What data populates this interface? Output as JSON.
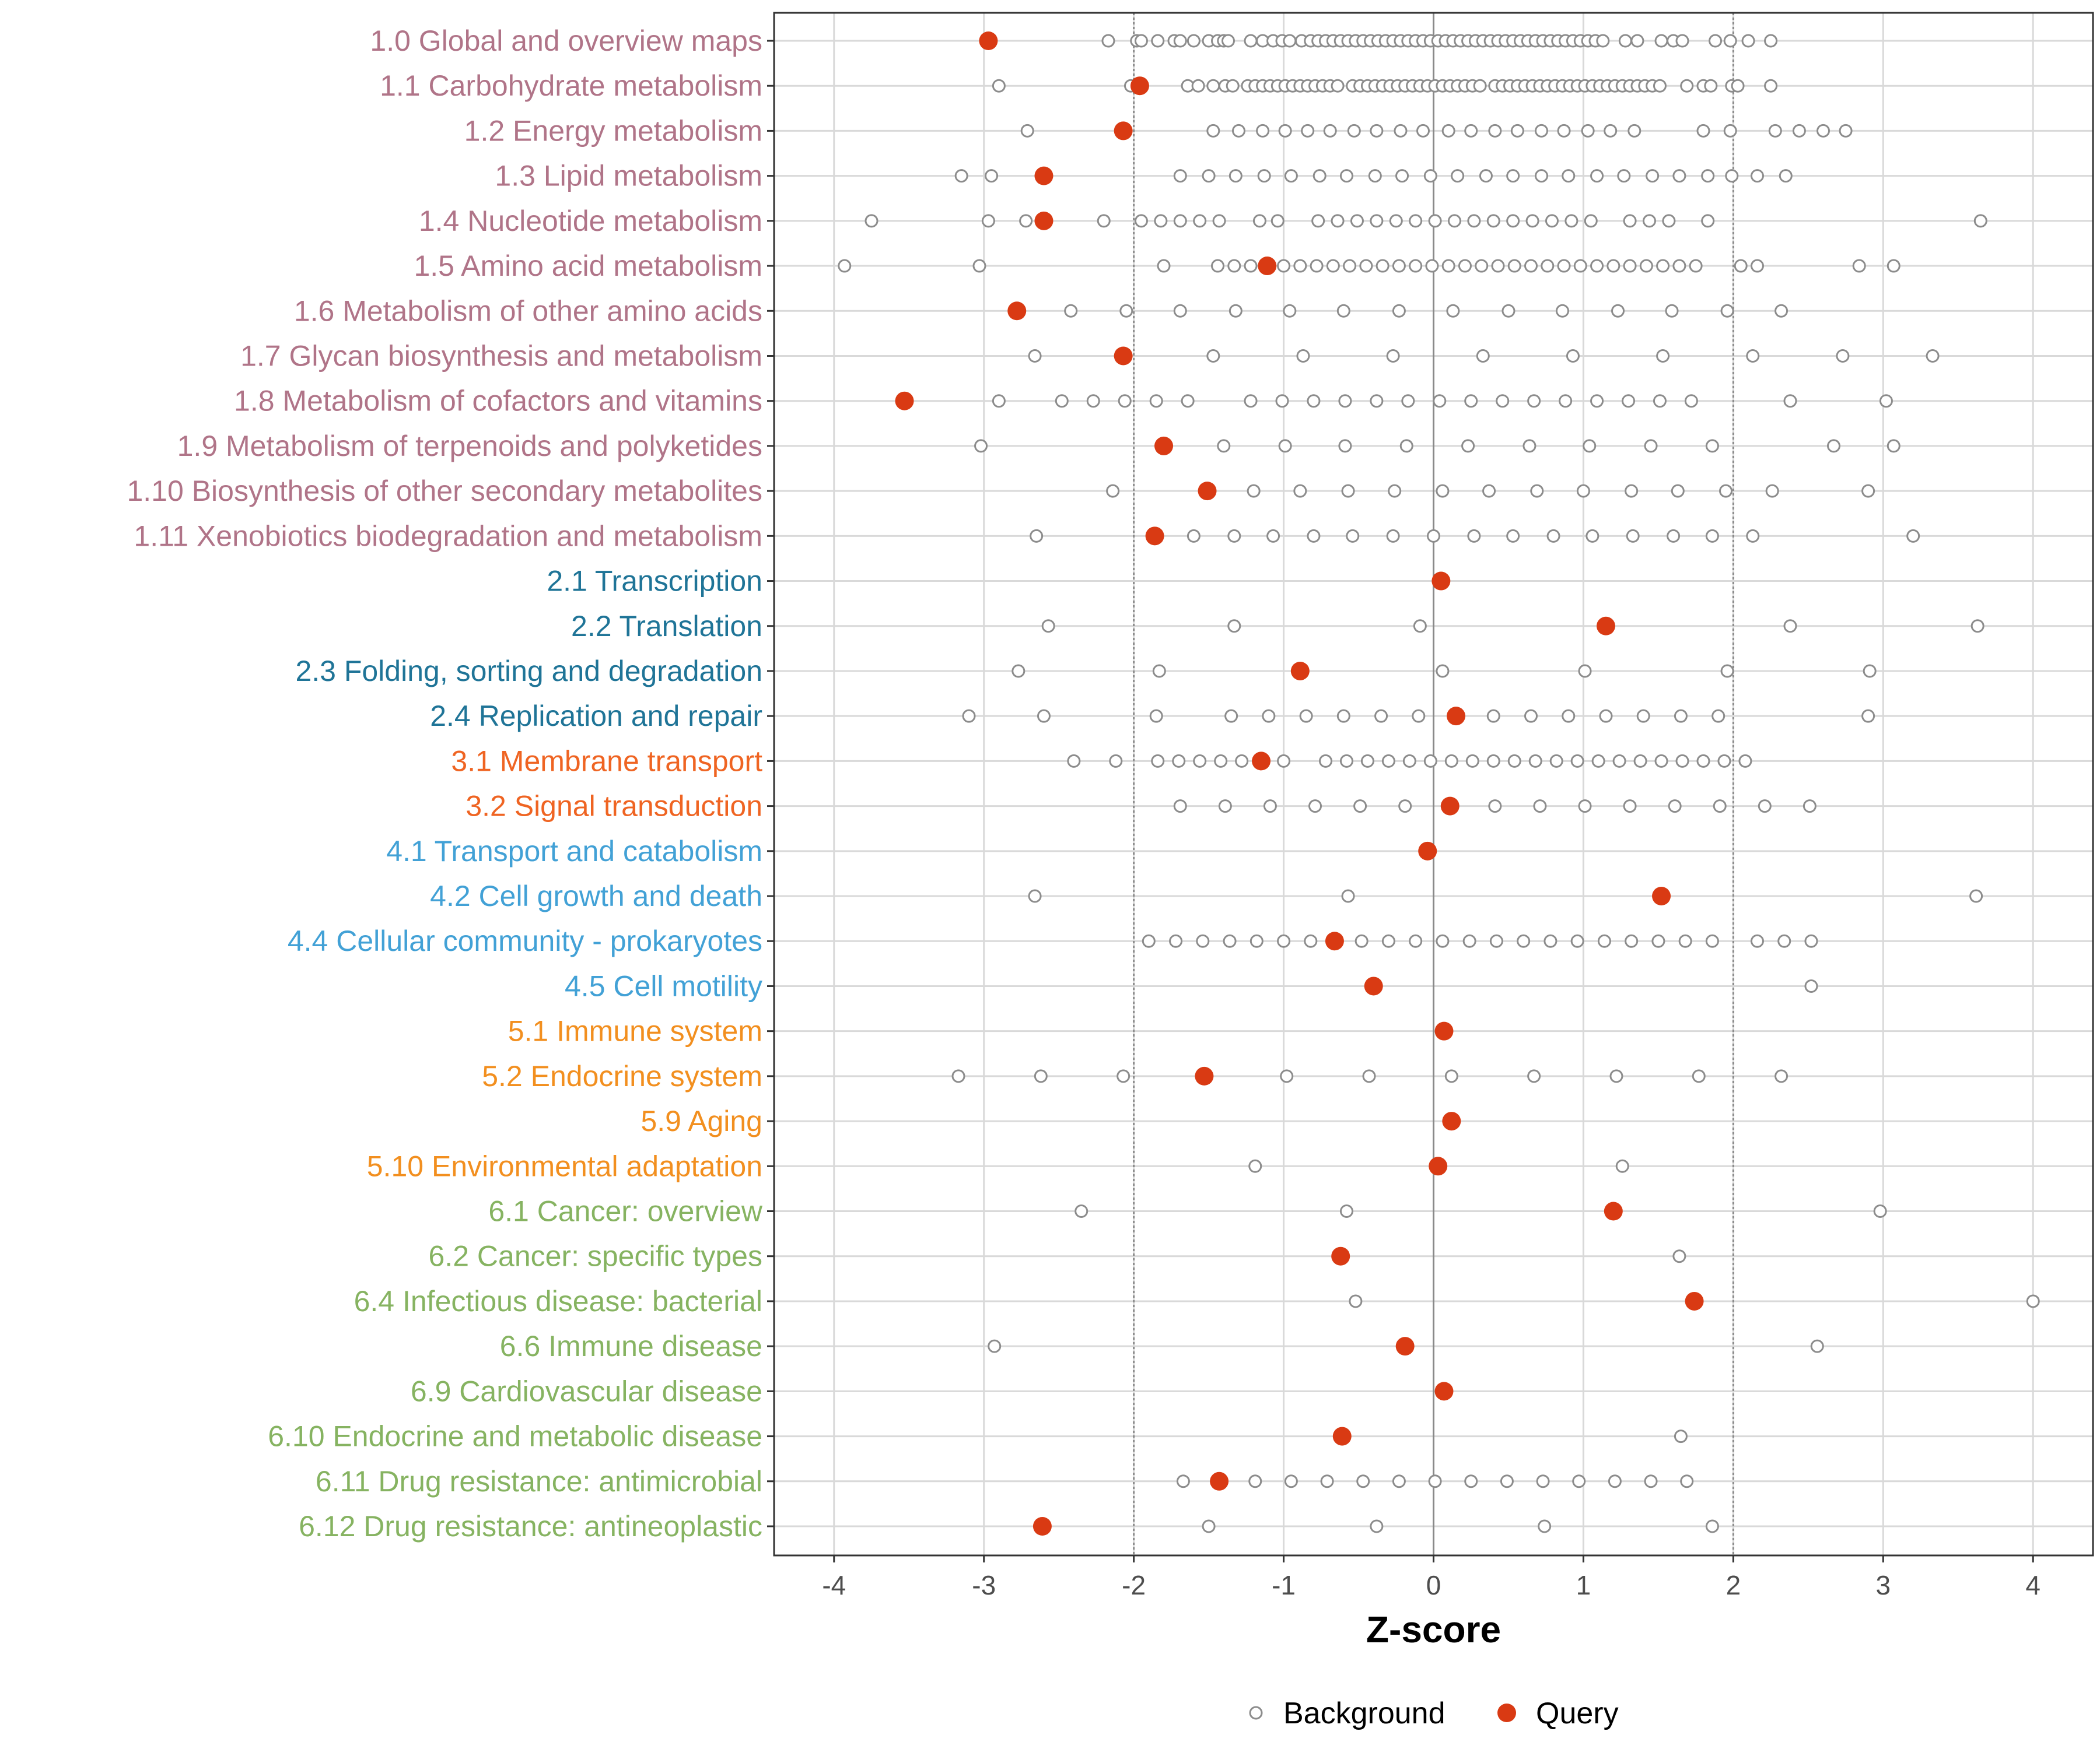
{
  "chart_data": {
    "type": "scatter",
    "xlabel": "Z-score",
    "xlim": [
      -4.4,
      4.4
    ],
    "xticks": [
      -4,
      -3,
      -2,
      -1,
      0,
      1,
      2,
      3,
      4
    ],
    "xtick_labels": [
      "-4",
      "-3",
      "-2",
      "-1",
      "0",
      "1",
      "2",
      "3",
      "4"
    ],
    "reference_lines": [
      -2,
      0,
      2
    ],
    "legend": {
      "position": "bottom",
      "entries": [
        {
          "name": "Background",
          "style": "open-circle",
          "color": "#8c8c8c"
        },
        {
          "name": "Query",
          "style": "filled-circle",
          "color": "#d93a13"
        }
      ]
    },
    "group_colors": {
      "1": "#b07488",
      "2": "#1f7497",
      "3": "#ef6422",
      "4": "#42a1d6",
      "5": "#f28f1f",
      "6": "#86b361"
    },
    "categories": [
      {
        "label": "1.0 Global and overview maps",
        "group": "1",
        "query": -2.97,
        "background": [
          -2.17,
          -1.98,
          -1.95,
          -1.84,
          -1.73,
          -1.69,
          -1.6,
          -1.5,
          -1.44,
          -1.4,
          -1.37,
          -1.22,
          -1.14,
          -1.07,
          -1.01,
          -0.96,
          -0.88,
          -0.82,
          -0.77,
          -0.72,
          -0.67,
          -0.62,
          -0.57,
          -0.52,
          -0.47,
          -0.42,
          -0.37,
          -0.32,
          -0.27,
          -0.22,
          -0.17,
          -0.12,
          -0.07,
          -0.02,
          0.03,
          0.08,
          0.13,
          0.18,
          0.23,
          0.28,
          0.33,
          0.38,
          0.43,
          0.48,
          0.53,
          0.58,
          0.63,
          0.68,
          0.73,
          0.78,
          0.83,
          0.88,
          0.93,
          0.98,
          1.03,
          1.08,
          1.13,
          1.28,
          1.36,
          1.52,
          1.6,
          1.66,
          1.88,
          1.98,
          2.1,
          2.25
        ]
      },
      {
        "label": "1.1 Carbohydrate metabolism",
        "group": "1",
        "query": -1.96,
        "background": [
          -2.9,
          -2.02,
          -1.64,
          -1.57,
          -1.47,
          -1.39,
          -1.34,
          -1.24,
          -1.19,
          -1.14,
          -1.09,
          -1.04,
          -0.99,
          -0.94,
          -0.89,
          -0.84,
          -0.79,
          -0.74,
          -0.69,
          -0.64,
          -0.54,
          -0.49,
          -0.44,
          -0.39,
          -0.34,
          -0.29,
          -0.24,
          -0.19,
          -0.14,
          -0.09,
          -0.04,
          0.01,
          0.06,
          0.11,
          0.16,
          0.21,
          0.26,
          0.31,
          0.41,
          0.46,
          0.51,
          0.56,
          0.61,
          0.66,
          0.71,
          0.76,
          0.81,
          0.86,
          0.91,
          0.96,
          1.01,
          1.06,
          1.11,
          1.16,
          1.21,
          1.26,
          1.31,
          1.36,
          1.41,
          1.46,
          1.51,
          1.69,
          1.8,
          1.85,
          1.99,
          2.03,
          2.25
        ]
      },
      {
        "label": "1.2 Energy metabolism",
        "group": "1",
        "query": -2.07,
        "background": [
          -2.71,
          -1.47,
          -1.3,
          -1.14,
          -0.99,
          -0.84,
          -0.69,
          -0.53,
          -0.38,
          -0.22,
          -0.07,
          0.1,
          0.25,
          0.41,
          0.56,
          0.72,
          0.87,
          1.03,
          1.18,
          1.34,
          1.8,
          1.98,
          2.28,
          2.44,
          2.6,
          2.75
        ]
      },
      {
        "label": "1.3 Lipid metabolism",
        "group": "1",
        "query": -2.6,
        "background": [
          -3.15,
          -2.95,
          -1.69,
          -1.5,
          -1.32,
          -1.13,
          -0.95,
          -0.76,
          -0.58,
          -0.39,
          -0.21,
          -0.02,
          0.16,
          0.35,
          0.53,
          0.72,
          0.9,
          1.09,
          1.27,
          1.46,
          1.64,
          1.83,
          1.99,
          2.16,
          2.35
        ]
      },
      {
        "label": "1.4 Nucleotide metabolism",
        "group": "1",
        "query": -2.6,
        "background": [
          -3.75,
          -2.97,
          -2.72,
          -2.2,
          -1.95,
          -1.82,
          -1.69,
          -1.56,
          -1.43,
          -1.16,
          -1.04,
          -0.77,
          -0.64,
          -0.51,
          -0.38,
          -0.25,
          -0.12,
          0.01,
          0.14,
          0.27,
          0.4,
          0.53,
          0.66,
          0.79,
          0.92,
          1.05,
          1.31,
          1.44,
          1.57,
          1.83,
          3.65
        ]
      },
      {
        "label": "1.5 Amino acid metabolism",
        "group": "1",
        "query": -1.11,
        "background": [
          -3.93,
          -3.03,
          -1.8,
          -1.44,
          -1.33,
          -1.22,
          -1.0,
          -0.89,
          -0.78,
          -0.67,
          -0.56,
          -0.45,
          -0.34,
          -0.23,
          -0.12,
          -0.01,
          0.1,
          0.21,
          0.32,
          0.43,
          0.54,
          0.65,
          0.76,
          0.87,
          0.98,
          1.09,
          1.2,
          1.31,
          1.42,
          1.53,
          1.64,
          1.75,
          2.05,
          2.16,
          2.84,
          3.07
        ]
      },
      {
        "label": "1.6 Metabolism of other amino acids",
        "group": "1",
        "query": -2.78,
        "background": [
          -2.42,
          -2.05,
          -1.69,
          -1.32,
          -0.96,
          -0.6,
          -0.23,
          0.13,
          0.5,
          0.86,
          1.23,
          1.59,
          1.96,
          2.32
        ]
      },
      {
        "label": "1.7 Glycan biosynthesis and metabolism",
        "group": "1",
        "query": -2.07,
        "background": [
          -2.66,
          -1.47,
          -0.87,
          -0.27,
          0.33,
          0.93,
          1.53,
          2.13,
          2.73,
          3.33
        ]
      },
      {
        "label": "1.8 Metabolism of cofactors and vitamins",
        "group": "1",
        "query": -3.53,
        "background": [
          -2.9,
          -2.48,
          -2.27,
          -2.06,
          -1.85,
          -1.64,
          -1.22,
          -1.01,
          -0.8,
          -0.59,
          -0.38,
          -0.17,
          0.04,
          0.25,
          0.46,
          0.67,
          0.88,
          1.09,
          1.3,
          1.51,
          1.72,
          2.38,
          3.02
        ]
      },
      {
        "label": "1.9 Metabolism of terpenoids and polyketides",
        "group": "1",
        "query": -1.8,
        "background": [
          -3.02,
          -1.4,
          -0.99,
          -0.59,
          -0.18,
          0.23,
          0.64,
          1.04,
          1.45,
          1.86,
          2.67,
          3.07
        ]
      },
      {
        "label": "1.10 Biosynthesis of other secondary metabolites",
        "group": "1",
        "query": -1.51,
        "background": [
          -2.14,
          -1.2,
          -0.89,
          -0.57,
          -0.26,
          0.06,
          0.37,
          0.69,
          1.0,
          1.32,
          1.63,
          1.95,
          2.26,
          2.9
        ]
      },
      {
        "label": "1.11 Xenobiotics biodegradation and metabolism",
        "group": "1",
        "query": -1.86,
        "background": [
          -2.65,
          -1.6,
          -1.33,
          -1.07,
          -0.8,
          -0.54,
          -0.27,
          0.0,
          0.27,
          0.53,
          0.8,
          1.06,
          1.33,
          1.6,
          1.86,
          2.13,
          3.2
        ]
      },
      {
        "label": "2.1 Transcription",
        "group": "2",
        "query": 0.05,
        "background": []
      },
      {
        "label": "2.2 Translation",
        "group": "2",
        "query": 1.15,
        "background": [
          -2.57,
          -1.33,
          -0.09,
          2.38,
          3.63
        ]
      },
      {
        "label": "2.3 Folding, sorting and degradation",
        "group": "2",
        "query": -0.89,
        "background": [
          -2.77,
          -1.83,
          0.06,
          1.01,
          1.96,
          2.91
        ]
      },
      {
        "label": "2.4 Replication and repair",
        "group": "2",
        "query": 0.15,
        "background": [
          -3.1,
          -2.6,
          -1.85,
          -1.35,
          -1.1,
          -0.85,
          -0.6,
          -0.35,
          -0.1,
          0.4,
          0.65,
          0.9,
          1.15,
          1.4,
          1.65,
          1.9,
          2.9
        ]
      },
      {
        "label": "3.1 Membrane transport",
        "group": "3",
        "query": -1.15,
        "background": [
          -2.4,
          -2.12,
          -1.84,
          -1.7,
          -1.56,
          -1.42,
          -1.28,
          -1.0,
          -0.72,
          -0.58,
          -0.44,
          -0.3,
          -0.16,
          -0.02,
          0.12,
          0.26,
          0.4,
          0.54,
          0.68,
          0.82,
          0.96,
          1.1,
          1.24,
          1.38,
          1.52,
          1.66,
          1.8,
          1.94,
          2.08
        ]
      },
      {
        "label": "3.2 Signal transduction",
        "group": "3",
        "query": 0.11,
        "background": [
          -1.69,
          -1.39,
          -1.09,
          -0.79,
          -0.49,
          -0.19,
          0.41,
          0.71,
          1.01,
          1.31,
          1.61,
          1.91,
          2.21,
          2.51
        ]
      },
      {
        "label": "4.1 Transport and catabolism",
        "group": "4",
        "query": -0.04,
        "background": []
      },
      {
        "label": "4.2 Cell growth and death",
        "group": "4",
        "query": 1.52,
        "background": [
          -2.66,
          -0.57,
          3.62
        ]
      },
      {
        "label": "4.4 Cellular community - prokaryotes",
        "group": "4",
        "query": -0.66,
        "background": [
          -1.9,
          -1.72,
          -1.54,
          -1.36,
          -1.18,
          -1.0,
          -0.82,
          -0.48,
          -0.3,
          -0.12,
          0.06,
          0.24,
          0.42,
          0.6,
          0.78,
          0.96,
          1.14,
          1.32,
          1.5,
          1.68,
          1.86,
          2.16,
          2.34,
          2.52
        ]
      },
      {
        "label": "4.5 Cell motility",
        "group": "4",
        "query": -0.4,
        "background": [
          2.52
        ]
      },
      {
        "label": "5.1 Immune system",
        "group": "5",
        "query": 0.07,
        "background": []
      },
      {
        "label": "5.2 Endocrine system",
        "group": "5",
        "query": -1.53,
        "background": [
          -3.17,
          -2.62,
          -2.07,
          -0.98,
          -0.43,
          0.12,
          0.67,
          1.22,
          1.77,
          2.32
        ]
      },
      {
        "label": "5.9 Aging",
        "group": "5",
        "query": 0.12,
        "background": []
      },
      {
        "label": "5.10 Environmental adaptation",
        "group": "5",
        "query": 0.03,
        "background": [
          -1.19,
          1.26
        ]
      },
      {
        "label": "6.1 Cancer: overview",
        "group": "6",
        "query": 1.2,
        "background": [
          -2.35,
          -0.58,
          2.98
        ]
      },
      {
        "label": "6.2 Cancer: specific types",
        "group": "6",
        "query": -0.62,
        "background": [
          1.64
        ]
      },
      {
        "label": "6.4 Infectious disease: bacterial",
        "group": "6",
        "query": 1.74,
        "background": [
          -0.52,
          4.0
        ]
      },
      {
        "label": "6.6 Immune disease",
        "group": "6",
        "query": -0.19,
        "background": [
          -2.93,
          2.56
        ]
      },
      {
        "label": "6.9 Cardiovascular disease",
        "group": "6",
        "query": 0.07,
        "background": []
      },
      {
        "label": "6.10 Endocrine and metabolic disease",
        "group": "6",
        "query": -0.61,
        "background": [
          1.65
        ]
      },
      {
        "label": "6.11 Drug resistance: antimicrobial",
        "group": "6",
        "query": -1.43,
        "background": [
          -1.67,
          -1.19,
          -0.95,
          -0.71,
          -0.47,
          -0.23,
          0.01,
          0.25,
          0.49,
          0.73,
          0.97,
          1.21,
          1.45,
          1.69
        ]
      },
      {
        "label": "6.12 Drug resistance: antineoplastic",
        "group": "6",
        "query": -2.61,
        "background": [
          -1.5,
          -0.38,
          0.74,
          1.86
        ]
      }
    ]
  }
}
